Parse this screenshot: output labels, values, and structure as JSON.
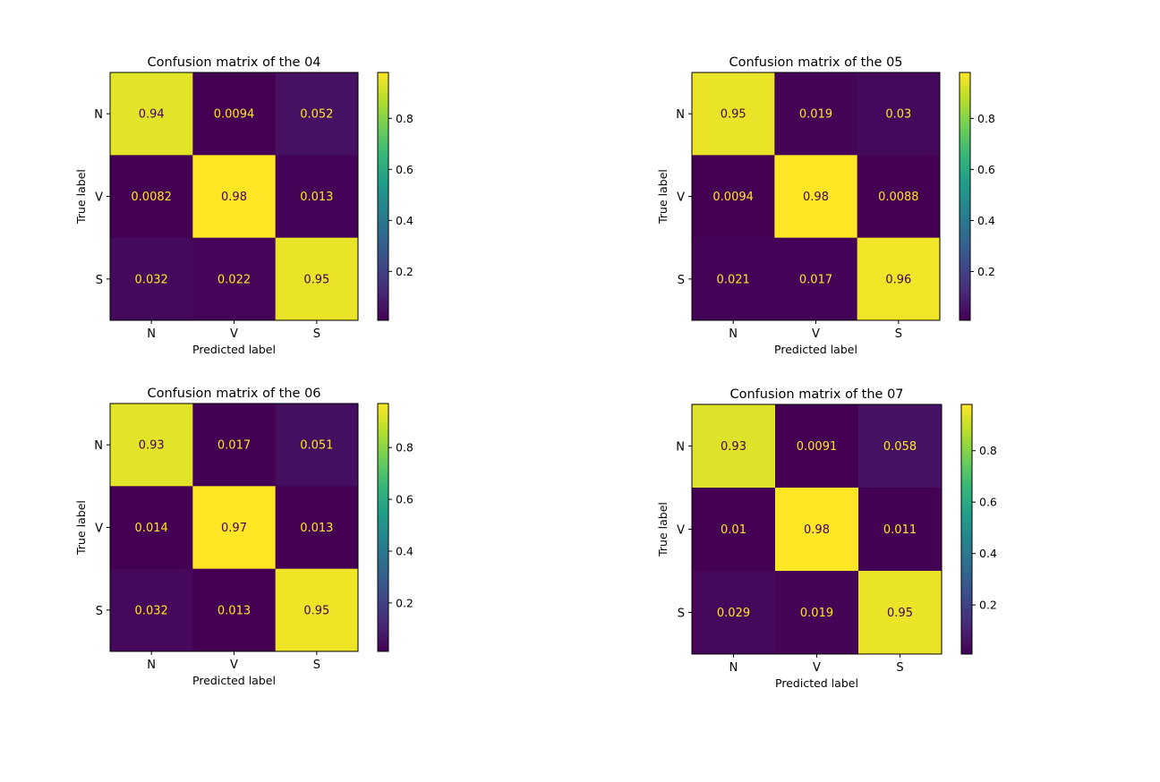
{
  "chart_data": [
    {
      "type": "heatmap",
      "title": "Confusion matrix of the 04",
      "xlabel": "Predicted label",
      "ylabel": "True label",
      "x_categories": [
        "N",
        "V",
        "S"
      ],
      "y_categories": [
        "N",
        "V",
        "S"
      ],
      "values": [
        [
          0.94,
          0.0094,
          0.052
        ],
        [
          0.0082,
          0.98,
          0.013
        ],
        [
          0.032,
          0.022,
          0.95
        ]
      ],
      "labels": [
        [
          "0.94",
          "0.0094",
          "0.052"
        ],
        [
          "0.0082",
          "0.98",
          "0.013"
        ],
        [
          "0.032",
          "0.022",
          "0.95"
        ]
      ],
      "colormap": "viridis",
      "clim": [
        0.0082,
        0.98
      ],
      "colorbar_ticks": [
        "0.2",
        "0.4",
        "0.6",
        "0.8"
      ]
    },
    {
      "type": "heatmap",
      "title": "Confusion matrix of the 05",
      "xlabel": "Predicted label",
      "ylabel": "True label",
      "x_categories": [
        "N",
        "V",
        "S"
      ],
      "y_categories": [
        "N",
        "V",
        "S"
      ],
      "values": [
        [
          0.95,
          0.019,
          0.03
        ],
        [
          0.0094,
          0.98,
          0.0088
        ],
        [
          0.021,
          0.017,
          0.96
        ]
      ],
      "labels": [
        [
          "0.95",
          "0.019",
          "0.03"
        ],
        [
          "0.0094",
          "0.98",
          "0.0088"
        ],
        [
          "0.021",
          "0.017",
          "0.96"
        ]
      ],
      "colormap": "viridis",
      "clim": [
        0.0088,
        0.98
      ],
      "colorbar_ticks": [
        "0.2",
        "0.4",
        "0.6",
        "0.8"
      ]
    },
    {
      "type": "heatmap",
      "title": "Confusion matrix of the 06",
      "xlabel": "Predicted label",
      "ylabel": "True label",
      "x_categories": [
        "N",
        "V",
        "S"
      ],
      "y_categories": [
        "N",
        "V",
        "S"
      ],
      "values": [
        [
          0.93,
          0.017,
          0.051
        ],
        [
          0.014,
          0.97,
          0.013
        ],
        [
          0.032,
          0.013,
          0.95
        ]
      ],
      "labels": [
        [
          "0.93",
          "0.017",
          "0.051"
        ],
        [
          "0.014",
          "0.97",
          "0.013"
        ],
        [
          "0.032",
          "0.013",
          "0.95"
        ]
      ],
      "colormap": "viridis",
      "clim": [
        0.013,
        0.97
      ],
      "colorbar_ticks": [
        "0.2",
        "0.4",
        "0.6",
        "0.8"
      ]
    },
    {
      "type": "heatmap",
      "title": "Confusion matrix of the 07",
      "xlabel": "Predicted label",
      "ylabel": "True label",
      "x_categories": [
        "N",
        "V",
        "S"
      ],
      "y_categories": [
        "N",
        "V",
        "S"
      ],
      "values": [
        [
          0.93,
          0.0091,
          0.058
        ],
        [
          0.01,
          0.98,
          0.011
        ],
        [
          0.029,
          0.019,
          0.95
        ]
      ],
      "labels": [
        [
          "0.93",
          "0.0091",
          "0.058"
        ],
        [
          "0.01",
          "0.98",
          "0.011"
        ],
        [
          "0.029",
          "0.019",
          "0.95"
        ]
      ],
      "colormap": "viridis",
      "clim": [
        0.0091,
        0.98
      ],
      "colorbar_ticks": [
        "0.2",
        "0.4",
        "0.6",
        "0.8"
      ]
    }
  ]
}
